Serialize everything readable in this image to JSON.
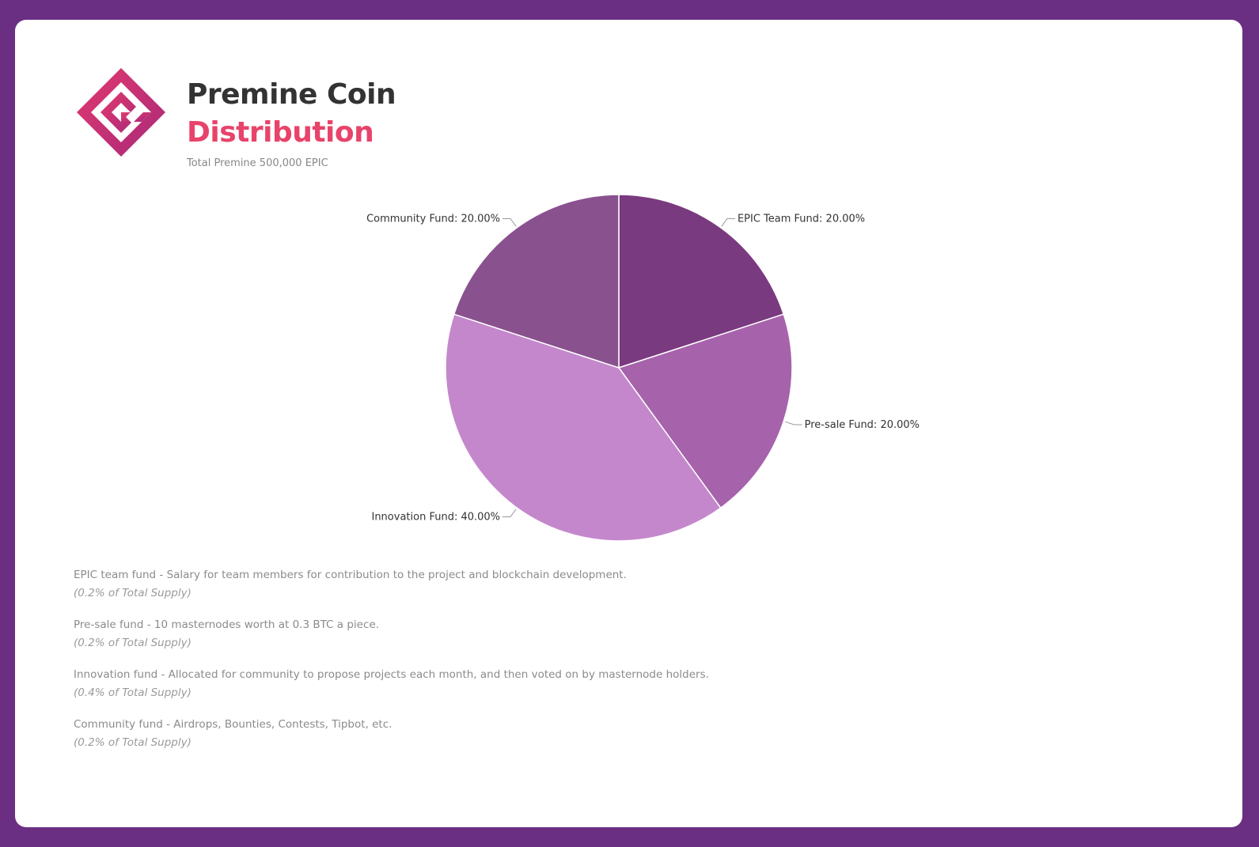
{
  "header": {
    "title": "Premine Coin",
    "title_accent": "Distribution",
    "subtitle": "Total Premine 500,000 EPIC"
  },
  "logo": {
    "icon": "epic-logo-icon",
    "colors": [
      "#e23a6e",
      "#a8297a"
    ]
  },
  "colors": {
    "frame": "#6a2f82",
    "title": "#333333",
    "accent": "#e8436a"
  },
  "chart_data": {
    "type": "pie",
    "title": "",
    "slices": [
      {
        "label": "EPIC Team Fund: 20.00%",
        "name": "EPIC Team Fund",
        "value": 20.0,
        "color": "#7a3a7f"
      },
      {
        "label": "Pre-sale Fund: 20.00%",
        "name": "Pre-sale Fund",
        "value": 20.0,
        "color": "#a662ab"
      },
      {
        "label": "Innovation Fund: 40.00%",
        "name": "Innovation Fund",
        "value": 40.0,
        "color": "#c487cc"
      },
      {
        "label": "Community Fund: 20.00%",
        "name": "Community Fund",
        "value": 20.0,
        "color": "#89528f"
      }
    ],
    "start": "top",
    "direction": "clockwise"
  },
  "notes": [
    {
      "description": "EPIC team fund - Salary for team members for contribution to the project and blockchain development.",
      "share": "(0.2% of Total Supply)"
    },
    {
      "description": "Pre-sale fund - 10 masternodes worth at 0.3 BTC a piece.",
      "share": "(0.2% of Total Supply)"
    },
    {
      "description": "Innovation fund - Allocated for community to propose projects each month, and then voted on by masternode holders.",
      "share": "(0.4% of Total Supply)"
    },
    {
      "description": "Community fund - Airdrops, Bounties, Contests, Tipbot, etc.",
      "share": "(0.2% of Total Supply)"
    }
  ]
}
